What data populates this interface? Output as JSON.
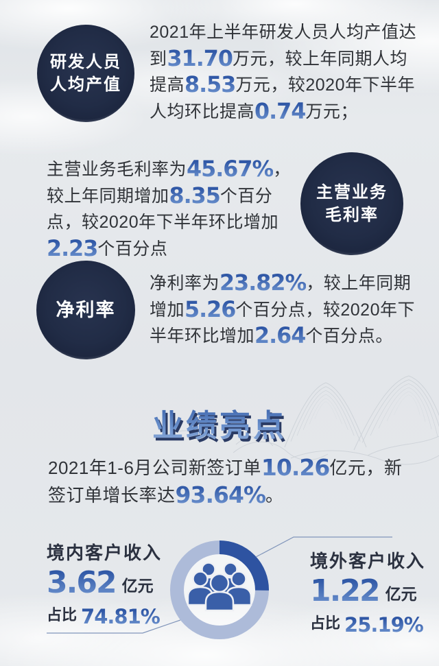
{
  "colors": {
    "background": "#e4e7ea",
    "badge_navy": "#212c46",
    "body_text": "#303338",
    "highlight_blue": "#3a66b2",
    "title_blue_gradient": [
      "#3a62aa",
      "#8fadda"
    ],
    "donut_dark": "#2e53a1",
    "donut_light": "#adbbd9",
    "people_icon": "#3a5fa8",
    "leader_line": "#8095ba"
  },
  "sections": {
    "rd_output": {
      "badge_line1": "研发人员",
      "badge_line2": "人均产值",
      "text": [
        {
          "t": "2021年上半年研发人员人均产值达到"
        },
        {
          "t": "31.70",
          "hl": true
        },
        {
          "t": "万元，较上年同期人均提高"
        },
        {
          "t": "8.53",
          "hl": true
        },
        {
          "t": "万元，较2020年下半年人均环比提高"
        },
        {
          "t": "0.74",
          "hl": true
        },
        {
          "t": "万元；"
        }
      ]
    },
    "gross_margin": {
      "badge_line1": "主营业务",
      "badge_line2": "毛利率",
      "text": [
        {
          "t": "主营业务毛利率为"
        },
        {
          "t": "45.67%",
          "hl": true
        },
        {
          "t": "，较上年同期增加"
        },
        {
          "t": "8.35",
          "hl": true
        },
        {
          "t": "个百分点，较2020年下半年环比增加"
        },
        {
          "t": "2.23",
          "hl": true
        },
        {
          "t": "个百分点"
        }
      ]
    },
    "net_margin": {
      "badge": "净利率",
      "text": [
        {
          "t": "净利率为"
        },
        {
          "t": "23.82%",
          "hl": true
        },
        {
          "t": "，较上年同期增加"
        },
        {
          "t": "5.26",
          "hl": true
        },
        {
          "t": "个百分点，较2020年下半年环比增加"
        },
        {
          "t": "2.64",
          "hl": true
        },
        {
          "t": "个百分点。"
        }
      ]
    },
    "highlights": {
      "title": "业绩亮点",
      "text": [
        {
          "t": "2021年1-6月公司新签订单"
        },
        {
          "t": "10.26",
          "hl": true
        },
        {
          "t": "亿元，新签订单增长率达"
        },
        {
          "t": "93.64%",
          "hl": true
        },
        {
          "t": "。"
        }
      ]
    },
    "revenue_split": {
      "domestic": {
        "label": "境内客户收入",
        "value": "3.62",
        "unit": "亿元",
        "share_prefix": "占比",
        "share": "74.81%"
      },
      "overseas": {
        "label": "境外客户收入",
        "value": "1.22",
        "unit": "亿元",
        "share_prefix": "占比",
        "share": "25.19%"
      }
    }
  },
  "chart_data": {
    "type": "pie",
    "donut": true,
    "slices": [
      {
        "label": "境内客户收入",
        "value": 3.62,
        "unit": "亿元",
        "share_pct": 74.81,
        "color": "#adbbd9"
      },
      {
        "label": "境外客户收入",
        "value": 1.22,
        "unit": "亿元",
        "share_pct": 25.19,
        "color": "#2e53a1"
      }
    ],
    "start_angle_deg": -90,
    "direction": "clockwise",
    "center_icon": "people-group",
    "legend_position": "left-and-right-callouts"
  }
}
